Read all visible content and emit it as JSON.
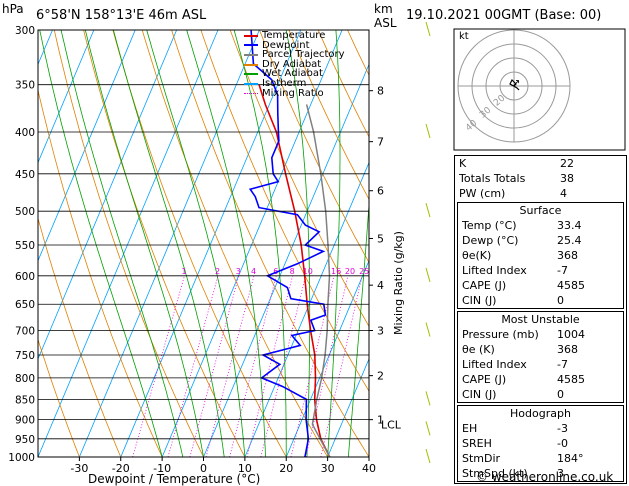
{
  "header": {
    "hpa": "hPa",
    "location": "6°58'N 158°13'E 46m ASL",
    "km": "km",
    "asl": "ASL",
    "datetime": "19.10.2021 00GMT (Base: 00)"
  },
  "legend": [
    {
      "label": "Temperature",
      "color": "#e00000"
    },
    {
      "label": "Dewpoint",
      "color": "#0000ff"
    },
    {
      "label": "Parcel Trajectory",
      "color": "#808080"
    },
    {
      "label": "Dry Adiabat",
      "color": "#e08000"
    },
    {
      "label": "Wet Adiabat",
      "color": "#00a000"
    },
    {
      "label": "Isotherm",
      "color": "#00a0ff"
    },
    {
      "label": "Mixing Ratio",
      "color": "#e000e0"
    }
  ],
  "chart_data": {
    "type": "line",
    "xlabel": "Dewpoint / Temperature (°C)",
    "ylabel_left": "hPa",
    "ylabel_right": "Mixing Ratio (g/kg)",
    "x_ticks": [
      "-30",
      "-20",
      "-10",
      "0",
      "10",
      "20",
      "30",
      "40"
    ],
    "pressure_ticks": [
      "300",
      "350",
      "400",
      "450",
      "500",
      "550",
      "600",
      "650",
      "700",
      "750",
      "800",
      "850",
      "900",
      "950",
      "1000"
    ],
    "km_ticks": [
      "8",
      "7",
      "6",
      "5",
      "4",
      "3",
      "2",
      "1"
    ],
    "lcl_label": "LCL",
    "mixing_ratio_labels": [
      "1",
      "2",
      "3",
      "4",
      "6",
      "8",
      "10",
      "16",
      "20",
      "25"
    ],
    "series": [
      {
        "name": "Temperature",
        "color": "#e00000",
        "points": [
          [
            1000,
            30.5
          ],
          [
            950,
            26.5
          ],
          [
            900,
            23.5
          ],
          [
            850,
            21.0
          ],
          [
            800,
            19.0
          ],
          [
            750,
            16.5
          ],
          [
            700,
            13.0
          ],
          [
            650,
            9.5
          ],
          [
            600,
            6.0
          ],
          [
            550,
            2.0
          ],
          [
            500,
            -3.0
          ],
          [
            450,
            -9.0
          ],
          [
            400,
            -15.5
          ],
          [
            370,
            -21.0
          ],
          [
            350,
            -24.5
          ]
        ]
      },
      {
        "name": "Dewpoint",
        "color": "#0000ff",
        "points": [
          [
            1000,
            24.5
          ],
          [
            950,
            23.5
          ],
          [
            900,
            21.0
          ],
          [
            850,
            19.0
          ],
          [
            820,
            12.0
          ],
          [
            800,
            6.0
          ],
          [
            770,
            9.0
          ],
          [
            750,
            4.0
          ],
          [
            730,
            12.0
          ],
          [
            710,
            9.0
          ],
          [
            700,
            14.0
          ],
          [
            680,
            12.0
          ],
          [
            670,
            15.0
          ],
          [
            650,
            13.5
          ],
          [
            640,
            5.0
          ],
          [
            620,
            3.0
          ],
          [
            600,
            -3.0
          ],
          [
            580,
            3.0
          ],
          [
            560,
            8.0
          ],
          [
            550,
            3.0
          ],
          [
            530,
            5.0
          ],
          [
            520,
            1.0
          ],
          [
            505,
            -2.0
          ],
          [
            495,
            -12.0
          ],
          [
            480,
            -14.0
          ],
          [
            470,
            -16.0
          ],
          [
            460,
            -10.0
          ],
          [
            450,
            -12.0
          ],
          [
            430,
            -14.0
          ],
          [
            410,
            -14.0
          ],
          [
            400,
            -15.0
          ],
          [
            380,
            -17.0
          ],
          [
            360,
            -19.0
          ],
          [
            345,
            -22.0
          ],
          [
            330,
            -28.0
          ],
          [
            300,
            -32.0
          ]
        ]
      },
      {
        "name": "Parcel Trajectory",
        "color": "#808080",
        "points": [
          [
            1000,
            30.5
          ],
          [
            912,
            23.0
          ],
          [
            850,
            21.5
          ],
          [
            800,
            20.5
          ],
          [
            750,
            19.0
          ],
          [
            700,
            17.0
          ],
          [
            650,
            14.5
          ],
          [
            600,
            12.0
          ],
          [
            550,
            8.5
          ],
          [
            500,
            4.5
          ],
          [
            450,
            -0.5
          ],
          [
            400,
            -6.5
          ],
          [
            370,
            -11.0
          ]
        ]
      }
    ]
  },
  "hodograph": {
    "label": "kt",
    "ring_labels": [
      "40",
      "30",
      "20"
    ]
  },
  "indices": [
    {
      "label": "K",
      "value": "22"
    },
    {
      "label": "Totals Totals",
      "value": "38"
    },
    {
      "label": "PW (cm)",
      "value": "4"
    }
  ],
  "surface": {
    "title": "Surface",
    "rows": [
      {
        "label": "Temp (°C)",
        "value": "33.4"
      },
      {
        "label": "Dewp (°C)",
        "value": "25.4"
      },
      {
        "label": "θe(K)",
        "value": "368"
      },
      {
        "label": "Lifted Index",
        "value": "-7"
      },
      {
        "label": "CAPE (J)",
        "value": "4585"
      },
      {
        "label": "CIN (J)",
        "value": "0"
      }
    ]
  },
  "most_unstable": {
    "title": "Most Unstable",
    "rows": [
      {
        "label": "Pressure (mb)",
        "value": "1004"
      },
      {
        "label": "θe (K)",
        "value": "368"
      },
      {
        "label": "Lifted Index",
        "value": "-7"
      },
      {
        "label": "CAPE (J)",
        "value": "4585"
      },
      {
        "label": "CIN (J)",
        "value": "0"
      }
    ]
  },
  "hodograph_table": {
    "title": "Hodograph",
    "rows": [
      {
        "label": "EH",
        "value": "-3"
      },
      {
        "label": "SREH",
        "value": "-0"
      },
      {
        "label": "StmDir",
        "value": "184°"
      },
      {
        "label": "StmSpd (kt)",
        "value": "3"
      }
    ]
  },
  "footer": "© weatheronline.co.uk"
}
